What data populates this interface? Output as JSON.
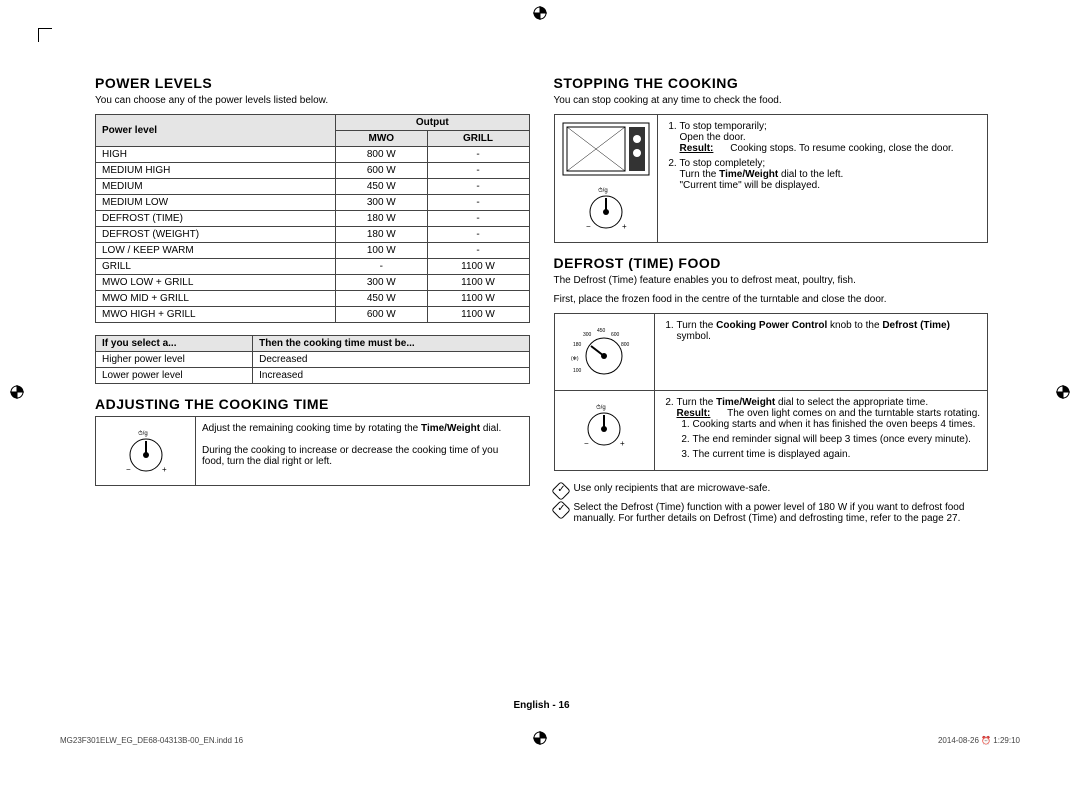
{
  "left": {
    "power_levels": {
      "heading": "POWER LEVELS",
      "intro": "You can choose any of the power levels listed below.",
      "header_power": "Power level",
      "header_output": "Output",
      "header_mwo": "MWO",
      "header_grill": "GRILL",
      "rows": [
        {
          "lvl": "HIGH",
          "mwo": "800 W",
          "grill": "-"
        },
        {
          "lvl": "MEDIUM HIGH",
          "mwo": "600 W",
          "grill": "-"
        },
        {
          "lvl": "MEDIUM",
          "mwo": "450 W",
          "grill": "-"
        },
        {
          "lvl": "MEDIUM LOW",
          "mwo": "300 W",
          "grill": "-"
        },
        {
          "lvl": "DEFROST (TIME)",
          "mwo": "180 W",
          "grill": "-"
        },
        {
          "lvl": "DEFROST (WEIGHT)",
          "mwo": "180 W",
          "grill": "-"
        },
        {
          "lvl": "LOW / KEEP WARM",
          "mwo": "100 W",
          "grill": "-"
        },
        {
          "lvl": "GRILL",
          "mwo": "-",
          "grill": "1100 W"
        },
        {
          "lvl": "MWO LOW + GRILL",
          "mwo": "300 W",
          "grill": "1100 W"
        },
        {
          "lvl": "MWO MID + GRILL",
          "mwo": "450 W",
          "grill": "1100 W"
        },
        {
          "lvl": "MWO HIGH + GRILL",
          "mwo": "600 W",
          "grill": "1100 W"
        }
      ],
      "guide_h1": "If you select a...",
      "guide_h2": "Then the cooking time must be...",
      "guide_rows": [
        {
          "a": "Higher power level",
          "b": "Decreased"
        },
        {
          "a": "Lower power level",
          "b": "Increased"
        }
      ]
    },
    "adjust": {
      "heading": "ADJUSTING THE COOKING TIME",
      "p1_a": "Adjust the remaining cooking time by rotating the ",
      "p1_b": "Time/Weight",
      "p1_c": " dial.",
      "p2": "During the cooking to increase or decrease the cooking time of you food, turn the dial right or left."
    }
  },
  "right": {
    "stopping": {
      "heading": "STOPPING THE COOKING",
      "intro": "You can stop cooking at any time to check the food.",
      "s1_a": "To stop temporarily;",
      "s1_b": "Open the door.",
      "s1_res_lbl": "Result:",
      "s1_res": "Cooking stops. To resume cooking, close the door.",
      "s2_a": "To stop completely;",
      "s2_b_a": "Turn the ",
      "s2_b_b": "Time/Weight",
      "s2_b_c": " dial to the left.",
      "s2_c": "\"Current time\" will be displayed."
    },
    "defrost": {
      "heading": "DEFROST (TIME) FOOD",
      "intro1": "The Defrost (Time) feature enables you to defrost meat, poultry, fish.",
      "intro2": "First, place the frozen food in the centre of the turntable and close the door.",
      "s1_a": "Turn the ",
      "s1_b": "Cooking Power Control",
      "s1_c": " knob to the ",
      "s1_d": "Defrost (Time)",
      "s1_e": " symbol.",
      "s2_a": "Turn the ",
      "s2_b": "Time/Weight",
      "s2_c": " dial to select the appropriate time.",
      "s2_res_lbl": "Result:",
      "s2_res": "The oven light comes on and the turntable starts rotating.",
      "s2_l1": "Cooking starts and when it has finished the oven beeps 4 times.",
      "s2_l2": "The end reminder signal will beep 3 times (once every minute).",
      "s2_l3": "The current time is displayed again.",
      "note1": "Use only recipients that are microwave-safe.",
      "note2": "Select the Defrost (Time) function with a power level of 180 W if you want to defrost food manually. For further details on Defrost (Time) and defrosting time, refer to the page 27."
    }
  },
  "footer": "English - 16",
  "print_left": "MG23F301ELW_EG_DE68-04313B-00_EN.indd   16",
  "print_right": "2014-08-26   ⏰ 1:29:10"
}
